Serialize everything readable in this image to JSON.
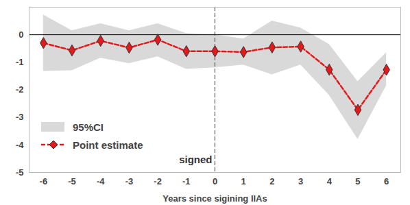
{
  "chart_data": {
    "type": "line",
    "x_label": "Years since sigining IIAs",
    "x": [
      -6,
      -5,
      -4,
      -3,
      -2,
      -1,
      0,
      1,
      2,
      3,
      4,
      5,
      6
    ],
    "xlim": [
      -6.5,
      6.5
    ],
    "xticks": [
      -6,
      -5,
      -4,
      -3,
      -2,
      -1,
      0,
      1,
      2,
      3,
      4,
      5,
      6
    ],
    "ylim": [
      -5,
      1
    ],
    "yticks": [
      -5,
      -4,
      -3,
      -2,
      -1,
      0
    ],
    "grid": false,
    "legend": "lower left",
    "series": [
      {
        "name": "95%CI",
        "type": "band",
        "color": "#d9d9d9",
        "lower": [
          -1.33,
          -1.3,
          -0.85,
          -1.05,
          -0.8,
          -1.25,
          -1.2,
          -1.1,
          -1.45,
          -1.1,
          -2.2,
          -3.8,
          -1.85
        ],
        "upper": [
          0.72,
          0.15,
          0.4,
          0.15,
          0.4,
          0.05,
          0.0,
          -0.15,
          0.5,
          0.25,
          -0.35,
          -1.7,
          -0.65
        ]
      },
      {
        "name": "Point estimate",
        "type": "line",
        "color": "#e31a1c",
        "marker": "diamond",
        "line_style": "dashed",
        "values": [
          -0.3,
          -0.57,
          -0.22,
          -0.47,
          -0.18,
          -0.6,
          -0.6,
          -0.63,
          -0.46,
          -0.43,
          -1.27,
          -2.73,
          -1.27
        ]
      }
    ],
    "annotations": [
      {
        "text": "signed",
        "x": 0,
        "line_style": "dashed"
      }
    ]
  }
}
